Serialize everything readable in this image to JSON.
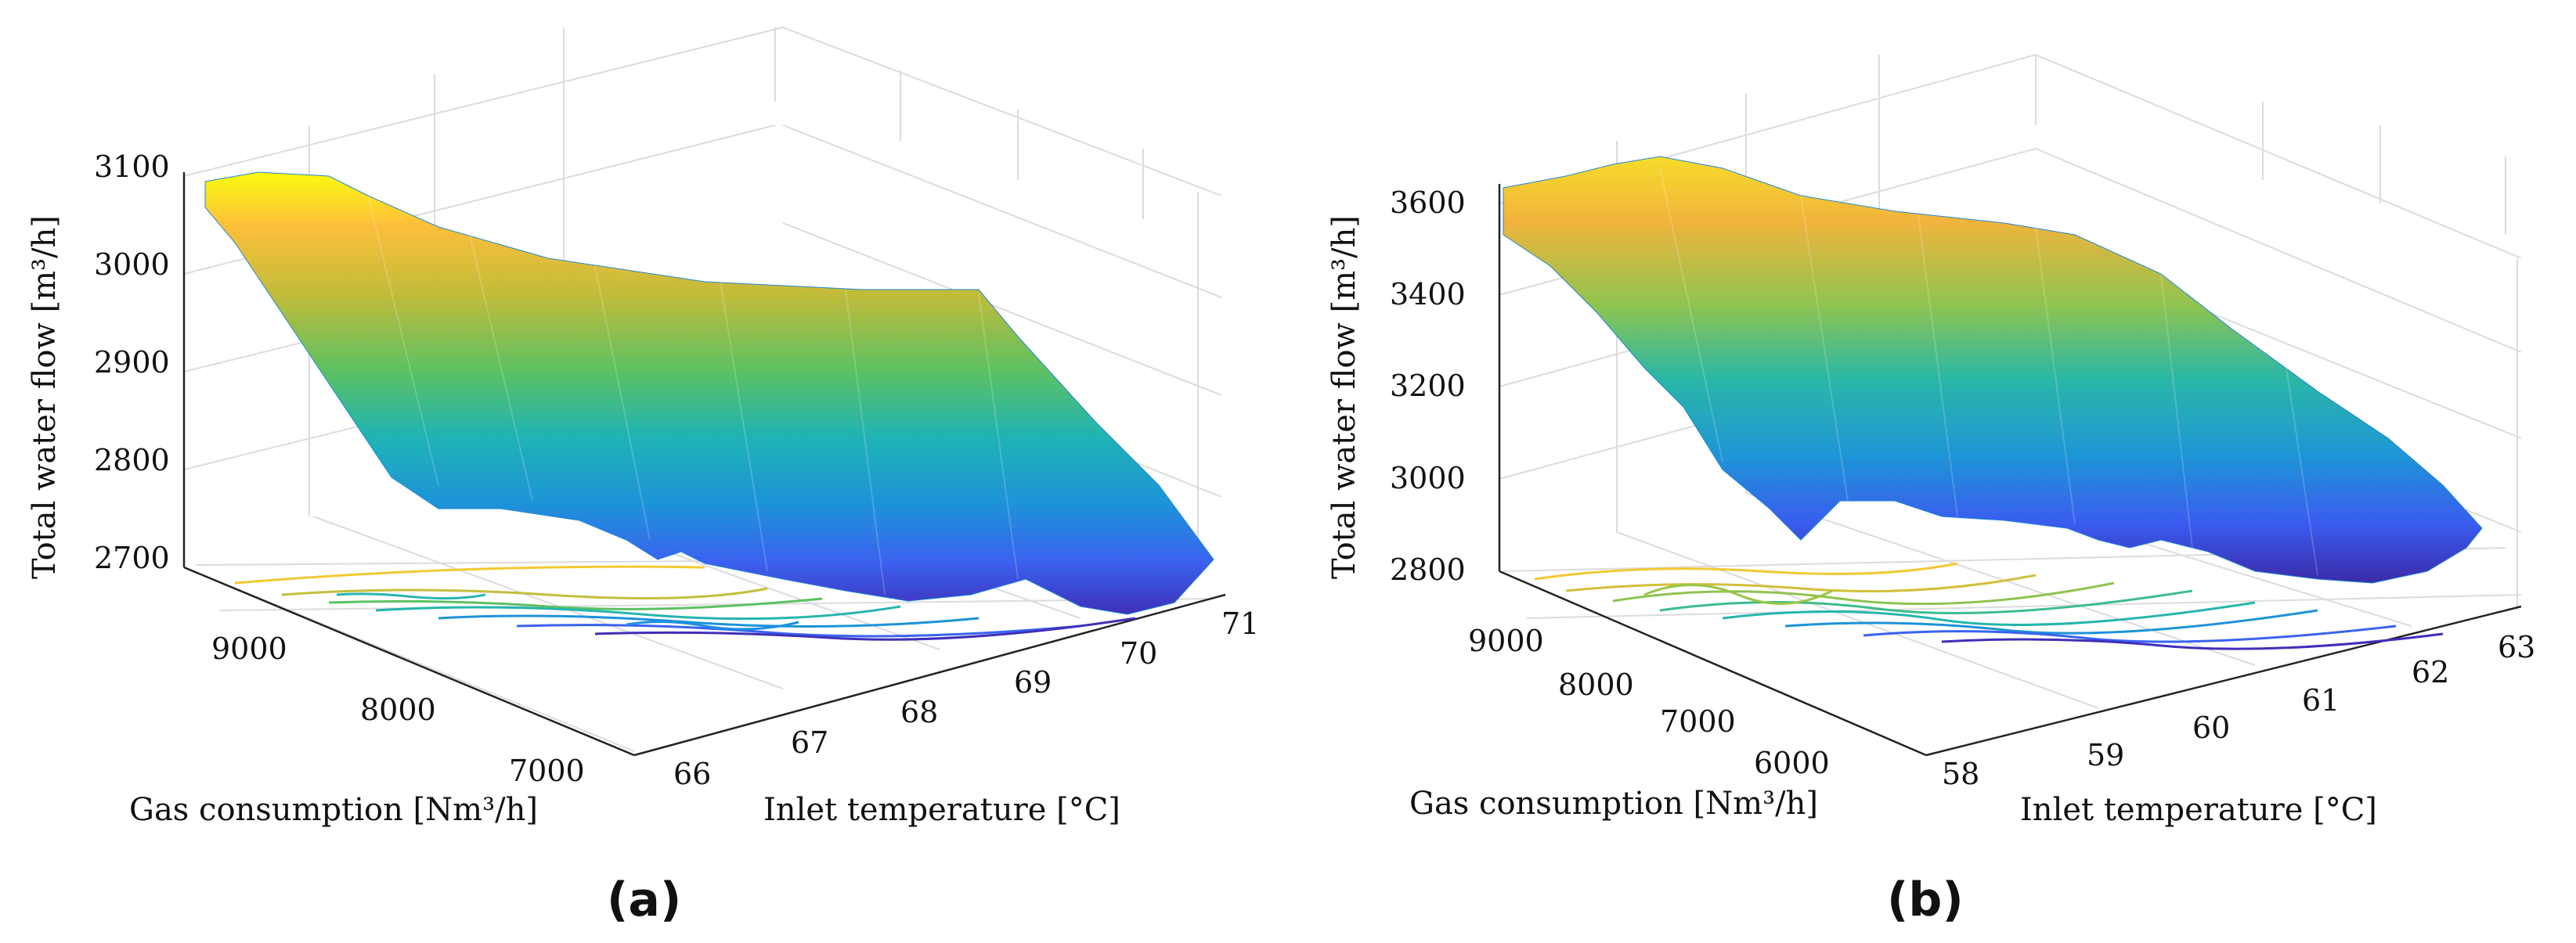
{
  "chart_data": [
    {
      "id": "a",
      "type": "surface3d",
      "panel_label": "(a)",
      "zlabel": "Total water flow [m³/h]",
      "ylabel": "Gas consumption [Nm³/h]",
      "xlabel": "Inlet temperature [°C]",
      "z_ticks": [
        "2700",
        "2800",
        "2900",
        "3000",
        "3100"
      ],
      "y_ticks": [
        "9000",
        "8000",
        "7000"
      ],
      "x_ticks": [
        "66",
        "67",
        "68",
        "69",
        "70",
        "71"
      ],
      "z_range": [
        2700,
        3100
      ],
      "gas_range": [
        6600,
        9500
      ],
      "temp_range": [
        65.5,
        71.3
      ],
      "ridge": {
        "gas": [
          9500,
          9200,
          8900,
          8600,
          8300,
          8000,
          7700,
          7400,
          7100,
          6800,
          6600
        ],
        "flow": [
          3075,
          3055,
          3010,
          2960,
          2930,
          2900,
          2860,
          2830,
          2790,
          2750,
          2735
        ]
      },
      "valley": {
        "gas": [
          9500,
          9200,
          8900,
          8600,
          8300,
          8000,
          7700,
          7400,
          7100,
          6800,
          6600
        ],
        "flow": [
          3000,
          2950,
          2880,
          2830,
          2790,
          2760,
          2745,
          2735,
          2720,
          2710,
          2705
        ]
      }
    },
    {
      "id": "b",
      "type": "surface3d",
      "panel_label": "(b)",
      "zlabel": "Total water flow [m³/h]",
      "ylabel": "Gas consumption [Nm³/h]",
      "xlabel": "Inlet temperature [°C]",
      "z_ticks": [
        "2800",
        "3000",
        "3200",
        "3400",
        "3600"
      ],
      "y_ticks": [
        "9000",
        "8000",
        "7000",
        "6000"
      ],
      "x_ticks": [
        "58",
        "59",
        "60",
        "61",
        "62",
        "63"
      ],
      "z_range": [
        2800,
        3650
      ],
      "gas_range": [
        5600,
        9600
      ],
      "temp_range": [
        57.5,
        63.3
      ],
      "ridge": {
        "gas": [
          9600,
          9200,
          8800,
          8400,
          8000,
          7600,
          7200,
          6800,
          6400,
          6000,
          5700
        ],
        "flow": [
          3620,
          3600,
          3560,
          3520,
          3450,
          3380,
          3300,
          3180,
          3050,
          2950,
          2890
        ]
      },
      "valley": {
        "gas": [
          9600,
          9200,
          8800,
          8400,
          8000,
          7600,
          7200,
          6800,
          6400,
          6000,
          5700
        ],
        "flow": [
          3480,
          3380,
          3250,
          3120,
          3000,
          2920,
          2880,
          2860,
          2840,
          2830,
          2820
        ]
      }
    }
  ]
}
